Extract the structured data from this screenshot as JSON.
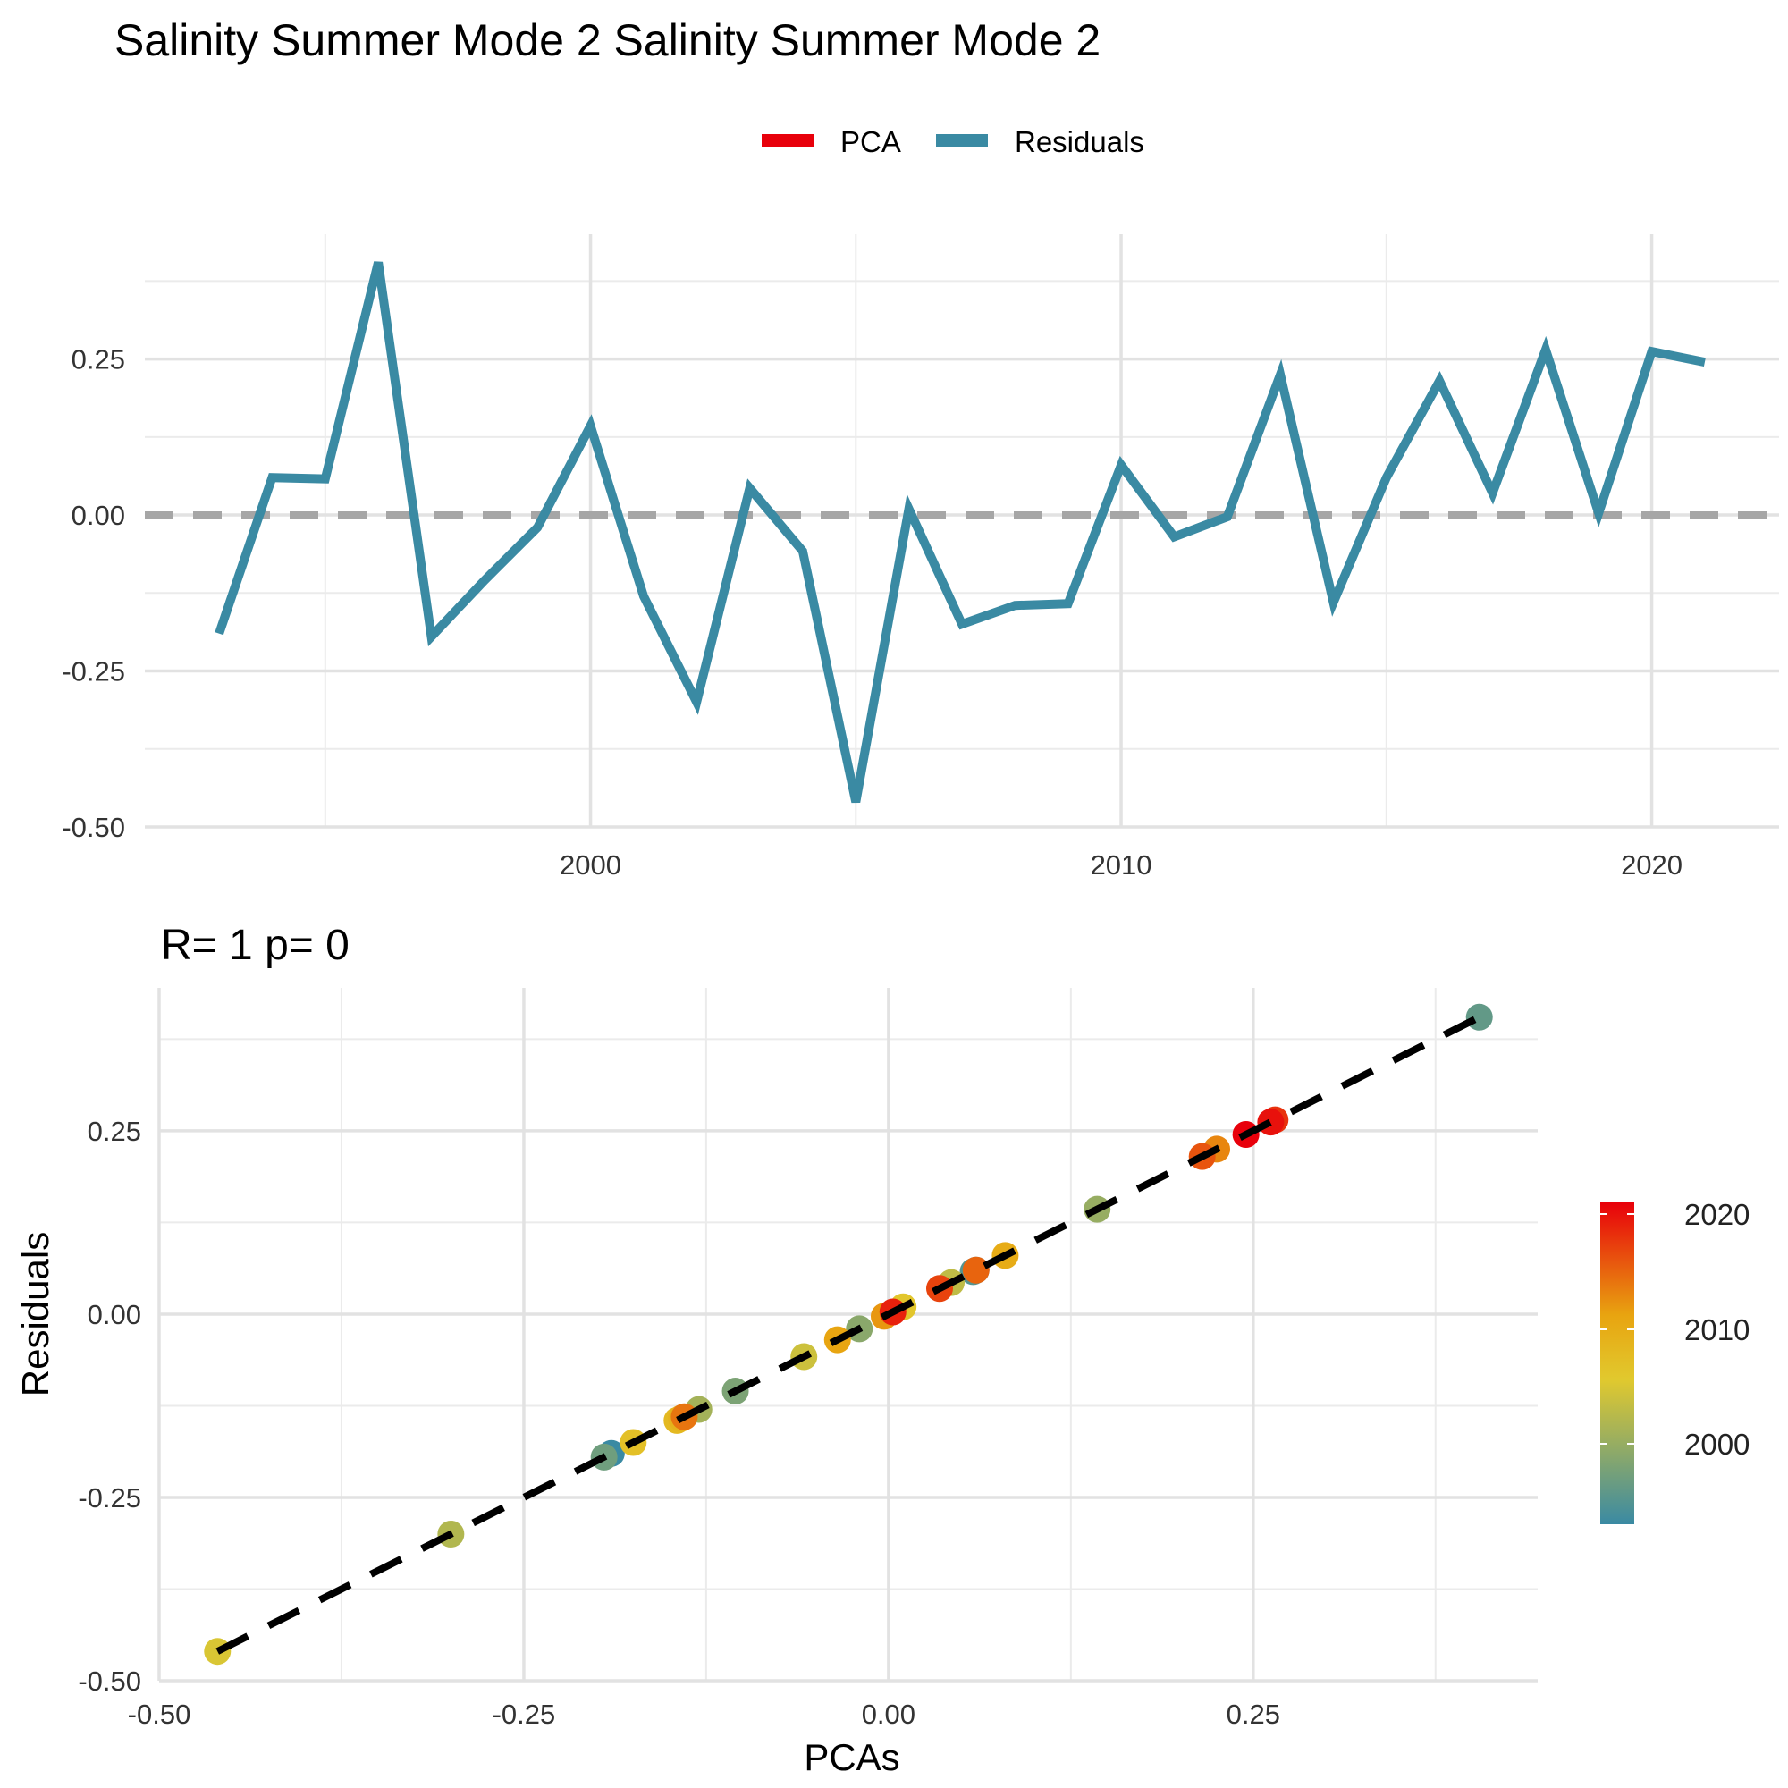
{
  "title": "Salinity Summer Mode 2 Salinity Summer Mode 2",
  "legend": {
    "placement": "top-center",
    "items": [
      {
        "label": "PCA",
        "color": "#e8000b"
      },
      {
        "label": "Residuals",
        "color": "#3a8aa3"
      }
    ]
  },
  "stats_label": "R= 1  p= 0",
  "colorbar_ticks": [
    "2020",
    "2010",
    "2000"
  ],
  "chart_data": [
    {
      "type": "line",
      "title": "",
      "xlabel": "",
      "ylabel": "",
      "xlim": [
        1991.6,
        2022.4
      ],
      "ylim": [
        -0.5,
        0.45
      ],
      "x_ticks": [
        2000,
        2010,
        2020
      ],
      "y_ticks": [
        -0.5,
        -0.25,
        0.0,
        0.25
      ],
      "y_tick_labels": [
        "-0.50",
        "-0.25",
        "0.00",
        "0.25"
      ],
      "grid": true,
      "reference_line": {
        "y": 0,
        "style": "dashed",
        "color": "#a6a6a6"
      },
      "series": [
        {
          "name": "Residuals",
          "color": "#3a8aa3",
          "x": [
            1993,
            1994,
            1995,
            1996,
            1997,
            1998,
            1999,
            2000,
            2001,
            2002,
            2003,
            2004,
            2005,
            2006,
            2007,
            2008,
            2009,
            2010,
            2011,
            2012,
            2013,
            2014,
            2015,
            2016,
            2017,
            2018,
            2019,
            2020,
            2021
          ],
          "y": [
            -0.19,
            0.06,
            0.058,
            0.405,
            -0.195,
            -0.105,
            -0.02,
            0.143,
            -0.13,
            -0.3,
            0.043,
            -0.058,
            -0.46,
            0.01,
            -0.175,
            -0.145,
            -0.142,
            0.08,
            -0.035,
            -0.003,
            0.225,
            -0.14,
            0.06,
            0.215,
            0.035,
            0.265,
            0.003,
            0.262,
            0.245
          ]
        }
      ]
    },
    {
      "type": "scatter",
      "title": "R= 1  p= 0",
      "xlabel": "PCAs",
      "ylabel": "Residuals",
      "xlim": [
        -0.5,
        0.445
      ],
      "ylim": [
        -0.5,
        0.445
      ],
      "x_ticks": [
        -0.5,
        -0.25,
        0.0,
        0.25
      ],
      "x_tick_labels": [
        "-0.50",
        "-0.25",
        "0.00",
        "0.25"
      ],
      "y_ticks": [
        -0.5,
        -0.25,
        0.0,
        0.25
      ],
      "y_tick_labels": [
        "-0.50",
        "-0.25",
        "0.00",
        "0.25"
      ],
      "grid": true,
      "fit_line": {
        "style": "dashed",
        "color": "#000000",
        "x": [
          -0.46,
          0.405
        ]
      },
      "color_scale": {
        "variable": "year",
        "range": [
          1993,
          2021
        ],
        "colors": [
          "#3a8aa3",
          "#e1c92e",
          "#e8a410",
          "#e8000b"
        ]
      },
      "points": [
        {
          "x": -0.19,
          "y": -0.19,
          "year": 1993
        },
        {
          "x": 0.06,
          "y": 0.06,
          "year": 1994
        },
        {
          "x": 0.058,
          "y": 0.058,
          "year": 1995
        },
        {
          "x": 0.405,
          "y": 0.405,
          "year": 1996
        },
        {
          "x": -0.195,
          "y": -0.195,
          "year": 1997
        },
        {
          "x": -0.105,
          "y": -0.105,
          "year": 1998
        },
        {
          "x": -0.02,
          "y": -0.02,
          "year": 1999
        },
        {
          "x": 0.143,
          "y": 0.143,
          "year": 2000
        },
        {
          "x": -0.13,
          "y": -0.13,
          "year": 2001
        },
        {
          "x": -0.3,
          "y": -0.3,
          "year": 2002
        },
        {
          "x": 0.043,
          "y": 0.043,
          "year": 2003
        },
        {
          "x": -0.058,
          "y": -0.058,
          "year": 2004
        },
        {
          "x": -0.46,
          "y": -0.46,
          "year": 2005
        },
        {
          "x": 0.01,
          "y": 0.01,
          "year": 2006
        },
        {
          "x": -0.175,
          "y": -0.175,
          "year": 2007
        },
        {
          "x": -0.145,
          "y": -0.145,
          "year": 2008
        },
        {
          "x": -0.142,
          "y": -0.142,
          "year": 2009
        },
        {
          "x": 0.08,
          "y": 0.08,
          "year": 2010
        },
        {
          "x": -0.035,
          "y": -0.035,
          "year": 2011
        },
        {
          "x": -0.003,
          "y": -0.003,
          "year": 2012
        },
        {
          "x": 0.225,
          "y": 0.225,
          "year": 2013
        },
        {
          "x": -0.14,
          "y": -0.14,
          "year": 2014
        },
        {
          "x": 0.06,
          "y": 0.06,
          "year": 2015
        },
        {
          "x": 0.215,
          "y": 0.215,
          "year": 2016
        },
        {
          "x": 0.035,
          "y": 0.035,
          "year": 2017
        },
        {
          "x": 0.265,
          "y": 0.265,
          "year": 2018
        },
        {
          "x": 0.003,
          "y": 0.003,
          "year": 2019
        },
        {
          "x": 0.262,
          "y": 0.262,
          "year": 2020
        },
        {
          "x": 0.245,
          "y": 0.245,
          "year": 2021
        }
      ]
    }
  ]
}
